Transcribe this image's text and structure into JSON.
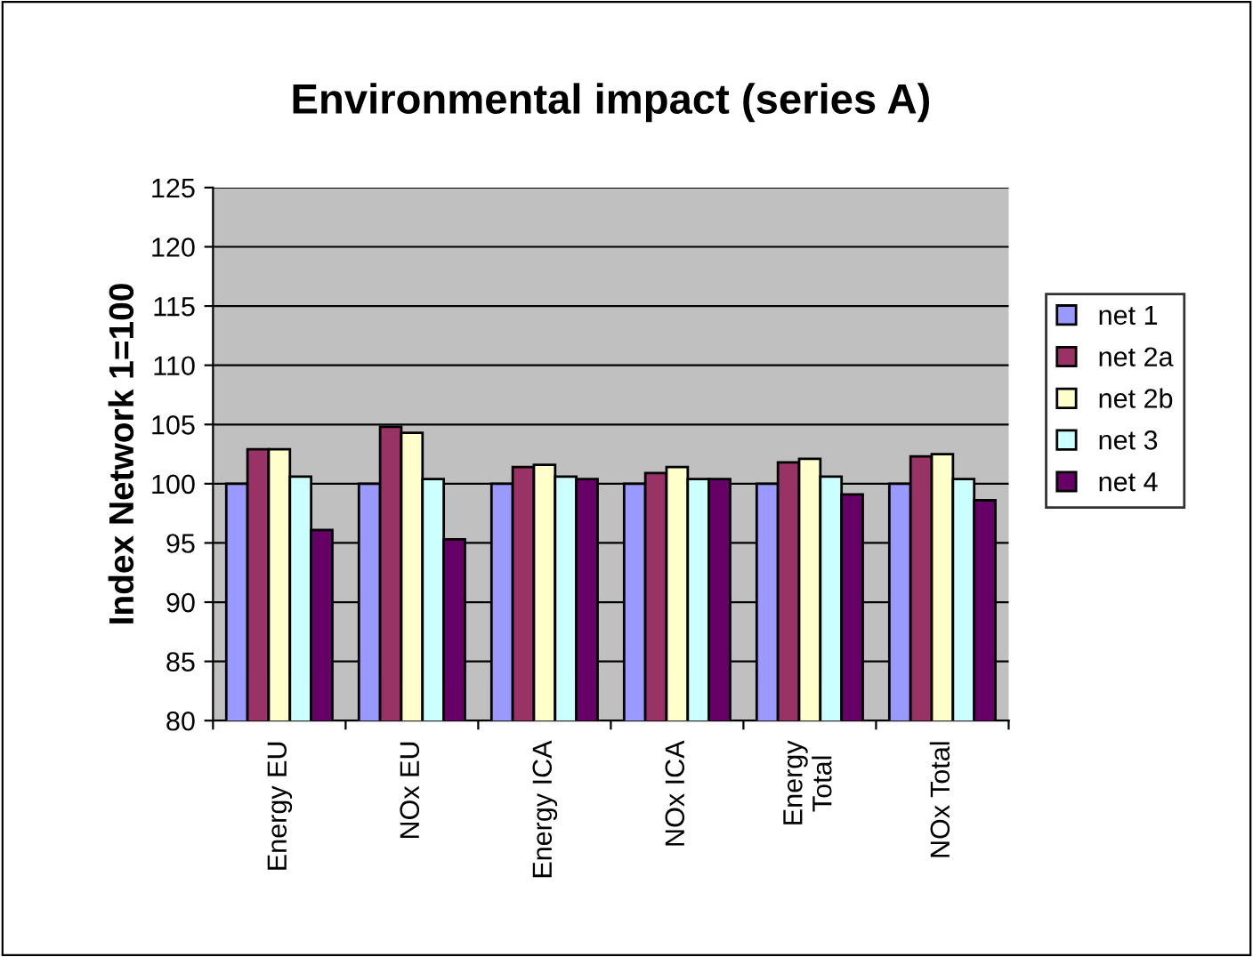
{
  "chart_data": {
    "type": "bar",
    "title": "Environmental impact (series A)",
    "ylabel": "Index Network 1=100",
    "categories": [
      "Energy EU",
      "NOx EU",
      "Energy ICA",
      "NOx ICA",
      "Energy\nTotal",
      "NOx Total"
    ],
    "series": [
      {
        "name": "net 1",
        "color": "#9999ff",
        "values": [
          100,
          100,
          100,
          100,
          100,
          100
        ]
      },
      {
        "name": "net 2a",
        "color": "#993366",
        "values": [
          102.9,
          104.8,
          101.4,
          100.9,
          101.8,
          102.3
        ]
      },
      {
        "name": "net 2b",
        "color": "#ffffcc",
        "values": [
          102.9,
          104.3,
          101.6,
          101.4,
          102.1,
          102.5
        ]
      },
      {
        "name": "net 3",
        "color": "#ccffff",
        "values": [
          100.6,
          100.4,
          100.6,
          100.4,
          100.6,
          100.4
        ]
      },
      {
        "name": "net 4",
        "color": "#660066",
        "values": [
          96.1,
          95.3,
          100.4,
          100.4,
          99.1,
          98.6
        ]
      }
    ],
    "ylim": [
      80,
      125
    ],
    "yticks": [
      80,
      85,
      90,
      95,
      100,
      105,
      110,
      115,
      120,
      125
    ],
    "grid": "y",
    "legend": "right"
  }
}
